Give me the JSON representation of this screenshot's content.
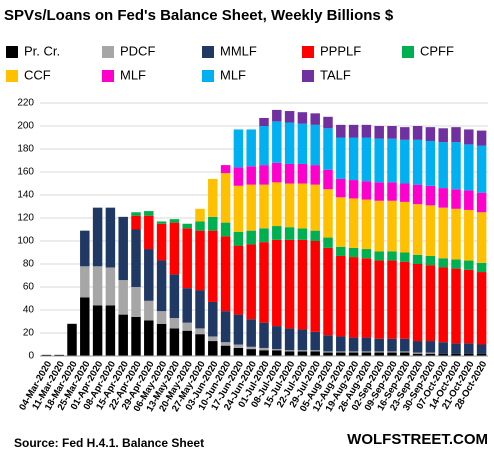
{
  "chart_data": {
    "type": "stacked_bar",
    "title": "SPVs/Loans  on Fed's Balance Sheet, Weekly Billions $",
    "source": "Source: Fed H.4.1. Balance Sheet",
    "brand": "WOLFSTREET.COM",
    "categories": [
      "04-Mar-2020",
      "11-Mar-2020",
      "18-Mar-2020",
      "25-Mar-2020",
      "01-Apr-2020",
      "08-Apr-2020",
      "15-Apr-2020",
      "22-Apr-2020",
      "29-Apr-2020",
      "06-May-2020",
      "13-May-2020",
      "20-May-2020",
      "27-May-2020",
      "03-Jun-2020",
      "10-Jun-2020",
      "17-Jun-2020",
      "24-Jun-2020",
      "01-Jul-2020",
      "08-Jul-2020",
      "15-Jul-2020",
      "22-Jul-2020",
      "29-Jul-2020",
      "05-Aug-2020",
      "12-Aug-2020",
      "19-Aug-2020",
      "26-Aug-2020",
      "02-Sep-2020",
      "09-Sep-2020",
      "16-Sep-2020",
      "23-Sep-2020",
      "30-Sep-2020",
      "07-Oct-2020",
      "14-Oct-2020",
      "21-Oct-2020",
      "28-Oct-2020"
    ],
    "series": [
      {
        "name": "Pr. Cr.",
        "color": "#000000",
        "values": [
          1,
          1,
          28,
          51,
          44,
          44,
          36,
          34,
          31,
          28,
          24,
          22,
          19,
          13,
          9,
          7,
          6,
          5,
          5,
          4,
          4,
          4,
          3,
          3,
          3,
          3,
          3,
          3,
          3,
          2,
          2,
          2,
          2,
          2,
          2
        ]
      },
      {
        "name": "PDCF",
        "color": "#a6a6a6",
        "values": [
          0,
          0,
          0,
          27,
          34,
          33,
          30,
          26,
          17,
          11,
          9,
          7,
          5,
          4,
          3,
          3,
          2,
          2,
          1,
          1,
          1,
          1,
          1,
          1,
          1,
          1,
          1,
          1,
          1,
          1,
          1,
          0,
          0,
          0,
          0
        ]
      },
      {
        "name": "MMLF",
        "color": "#1f3864",
        "values": [
          0,
          0,
          0,
          31,
          51,
          52,
          55,
          50,
          45,
          44,
          38,
          30,
          33,
          30,
          27,
          26,
          24,
          22,
          20,
          19,
          18,
          16,
          14,
          13,
          12,
          12,
          11,
          11,
          11,
          10,
          10,
          10,
          9,
          9,
          8
        ]
      },
      {
        "name": "PPPLF",
        "color": "#ff0000",
        "values": [
          0,
          0,
          0,
          0,
          0,
          0,
          0,
          12,
          29,
          32,
          45,
          52,
          52,
          62,
          65,
          60,
          65,
          70,
          75,
          77,
          78,
          79,
          76,
          70,
          70,
          69,
          68,
          68,
          67,
          67,
          66,
          65,
          65,
          64,
          63
        ]
      },
      {
        "name": "CPFF",
        "color": "#00b050",
        "values": [
          0,
          0,
          0,
          0,
          0,
          0,
          0,
          3,
          4,
          2,
          3,
          4,
          8,
          12,
          12,
          12,
          12,
          12,
          12,
          11,
          10,
          9,
          9,
          8,
          8,
          8,
          8,
          8,
          8,
          8,
          8,
          8,
          8,
          8,
          8
        ]
      },
      {
        "name": "CCF",
        "color": "#ffc000",
        "values": [
          0,
          0,
          0,
          0,
          0,
          0,
          0,
          0,
          0,
          0,
          0,
          0,
          11,
          33,
          43,
          40,
          40,
          38,
          38,
          38,
          39,
          40,
          42,
          43,
          43,
          43,
          44,
          44,
          44,
          44,
          44,
          44,
          44,
          44,
          44
        ]
      },
      {
        "name": "MLF",
        "color": "#ff00cc",
        "values": [
          0,
          0,
          0,
          0,
          0,
          0,
          0,
          0,
          0,
          0,
          0,
          0,
          0,
          0,
          7,
          16,
          16,
          17,
          17,
          17,
          17,
          17,
          17,
          16,
          16,
          16,
          16,
          16,
          16,
          17,
          17,
          17,
          17,
          17,
          17
        ]
      },
      {
        "name": "MLF",
        "color": "#00b0f0",
        "values": [
          0,
          0,
          0,
          0,
          0,
          0,
          0,
          0,
          0,
          0,
          0,
          0,
          0,
          0,
          0,
          33,
          32,
          34,
          36,
          36,
          35,
          35,
          36,
          36,
          37,
          38,
          38,
          38,
          38,
          39,
          39,
          40,
          41,
          40,
          41
        ]
      },
      {
        "name": "TALF",
        "color": "#7030a0",
        "values": [
          0,
          0,
          0,
          0,
          0,
          0,
          0,
          0,
          0,
          0,
          0,
          0,
          0,
          0,
          0,
          0,
          0,
          7,
          10,
          10,
          10,
          10,
          10,
          11,
          11,
          11,
          11,
          11,
          11,
          12,
          12,
          12,
          13,
          13,
          13
        ]
      }
    ],
    "ylim": [
      0,
      220
    ],
    "yticks": [
      0,
      20,
      40,
      60,
      80,
      100,
      120,
      140,
      160,
      180,
      200,
      220
    ],
    "grid": true
  }
}
